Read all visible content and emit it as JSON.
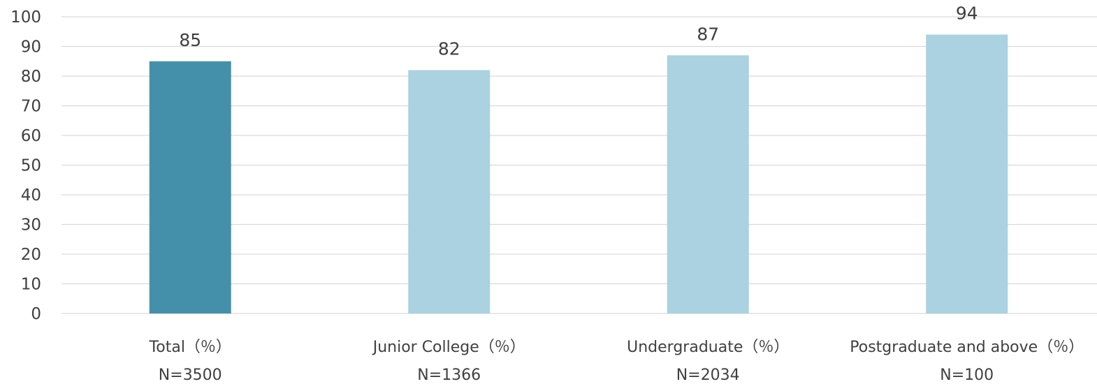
{
  "chart_data": {
    "type": "bar",
    "categories": [
      "Total（％）",
      "Junior College（％）",
      "Undergraduate（％）",
      "Postgraduate and above（％）"
    ],
    "sample_sizes": [
      "N=3500",
      "N=1366",
      "N=2034",
      "N=100"
    ],
    "values": [
      85,
      82,
      87,
      94
    ],
    "data_labels": [
      "85",
      "82",
      "87",
      "94"
    ],
    "title": "",
    "xlabel": "",
    "ylabel": "",
    "ylim": [
      0,
      100
    ],
    "yticks": [
      "0",
      "10",
      "20",
      "30",
      "40",
      "50",
      "60",
      "70",
      "80",
      "90",
      "100"
    ],
    "grid": true,
    "legend": "none",
    "colors": {
      "highlight_bar": "#4490ab",
      "bar": "#aad2e0",
      "grid": "#d9d9d9",
      "text": "#404040"
    }
  }
}
